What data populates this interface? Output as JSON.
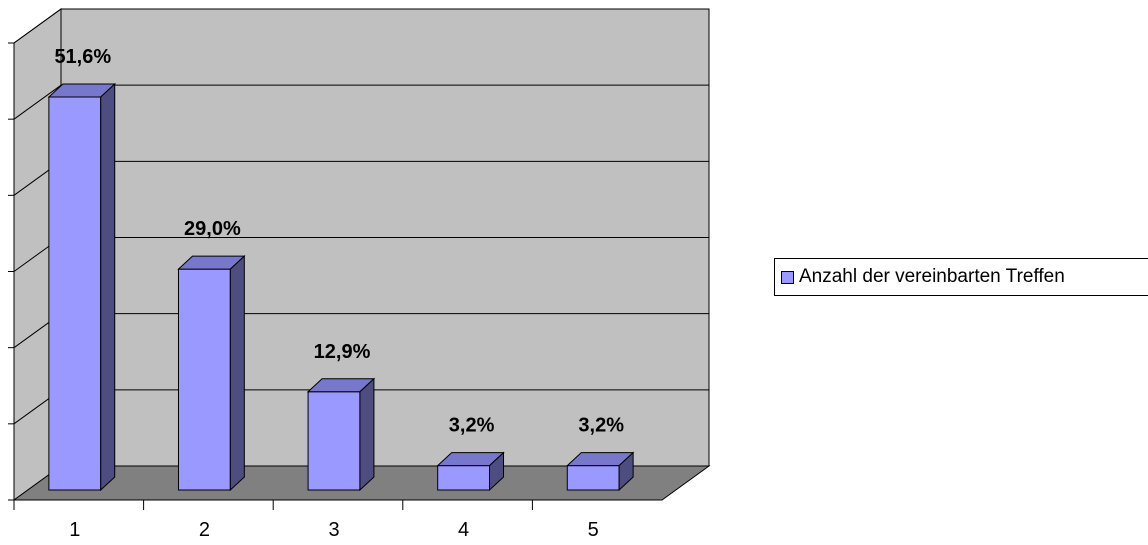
{
  "colors": {
    "wall": "#c0c0c0",
    "floor": "#808080",
    "bar_front": "#9999ff",
    "bar_top": "#7777cc",
    "bar_side": "#4d4d80",
    "grid": "#000000"
  },
  "legend": {
    "label": "Anzahl der vereinbarten Treffen"
  },
  "chart_data": {
    "type": "bar",
    "categories": [
      "1",
      "2",
      "3",
      "4",
      "5"
    ],
    "series": [
      {
        "name": "Anzahl der vereinbarten Treffen",
        "values": [
          51.6,
          29.0,
          12.9,
          3.2,
          3.2
        ],
        "labels": [
          "51,6%",
          "29,0%",
          "12,9%",
          "3,2%",
          "3,2%"
        ]
      }
    ],
    "ylim": [
      0,
      60
    ],
    "grid": true,
    "legend_position": "right",
    "three_d": true
  }
}
